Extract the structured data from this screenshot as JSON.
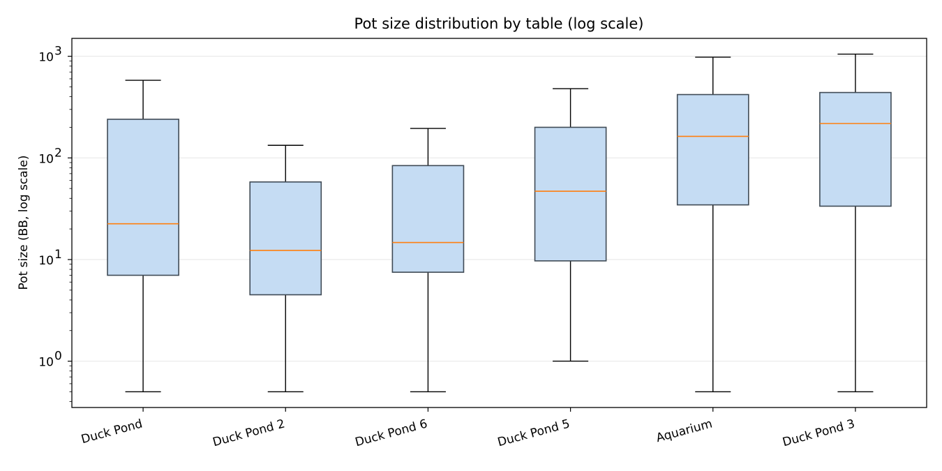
{
  "chart_data": {
    "type": "box",
    "title": "Pot size distribution by table (log scale)",
    "xlabel": "",
    "ylabel": "Pot size (BB, log scale)",
    "yscale": "log",
    "ylim": [
      0.35,
      1500
    ],
    "yticks": [
      {
        "value": 1,
        "base": "10",
        "exp": "0"
      },
      {
        "value": 10,
        "base": "10",
        "exp": "1"
      },
      {
        "value": 100,
        "base": "10",
        "exp": "2"
      },
      {
        "value": 1000,
        "base": "10",
        "exp": "3"
      }
    ],
    "grid": "horizontal",
    "categories": [
      "Duck Pond",
      "Duck Pond 2",
      "Duck Pond 6",
      "Duck Pond 5",
      "Aquarium",
      "Duck Pond 3"
    ],
    "boxes": [
      {
        "whisker_low": 0.5,
        "q1": 7.0,
        "median": 22.5,
        "q3": 240,
        "whisker_high": 580
      },
      {
        "whisker_low": 0.5,
        "q1": 4.5,
        "median": 12.3,
        "q3": 58,
        "whisker_high": 133
      },
      {
        "whisker_low": 0.5,
        "q1": 7.5,
        "median": 14.7,
        "q3": 84,
        "whisker_high": 195
      },
      {
        "whisker_low": 1.0,
        "q1": 9.7,
        "median": 47,
        "q3": 200,
        "whisker_high": 480
      },
      {
        "whisker_low": 0.5,
        "q1": 34.5,
        "median": 163,
        "q3": 420,
        "whisker_high": 980
      },
      {
        "whisker_low": 0.5,
        "q1": 33.5,
        "median": 218,
        "q3": 440,
        "whisker_high": 1050
      }
    ],
    "colors": {
      "box_fill": "#c5dcf3",
      "box_edge": "#3f4a55",
      "median": "#ff7f0e",
      "whisker": "#000000",
      "grid": "#e6e6e6",
      "axes": "#000000"
    }
  }
}
